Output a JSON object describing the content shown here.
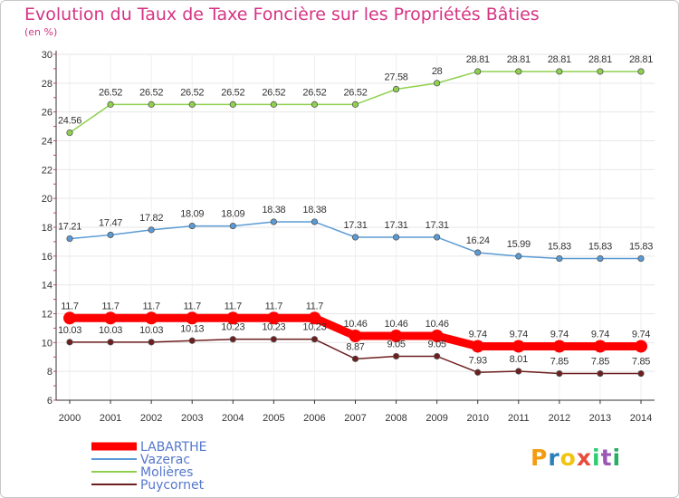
{
  "title": "Evolution du Taux de Taxe Foncière sur les Propriétés Bâties",
  "unit": "(en %)",
  "logo": {
    "letters": [
      "P",
      "r",
      "o",
      "x",
      "i",
      "t",
      "i"
    ],
    "colors": [
      "#f39c12",
      "#2980b9",
      "#f1c40f",
      "#e74c3c",
      "#2ecc71",
      "#9b59b6",
      "#27ae60"
    ]
  },
  "chart_data": {
    "type": "line",
    "x": [
      "2000",
      "2001",
      "2002",
      "2003",
      "2004",
      "2005",
      "2006",
      "2007",
      "2008",
      "2009",
      "2010",
      "2011",
      "2012",
      "2013",
      "2014"
    ],
    "ylim": [
      6,
      30
    ],
    "yticks": [
      6,
      8,
      10,
      12,
      14,
      16,
      18,
      20,
      22,
      24,
      26,
      28,
      30
    ],
    "grid": true,
    "legend_placement": "bottom-left",
    "series": [
      {
        "name": "LABARTHE",
        "color": "#ff0000",
        "bold": true,
        "values": [
          11.7,
          11.7,
          11.7,
          11.7,
          11.7,
          11.7,
          11.7,
          10.46,
          10.46,
          10.46,
          9.74,
          9.74,
          9.74,
          9.74,
          9.74
        ],
        "labels": [
          "11.7",
          "11.7",
          "11.7",
          "11.7",
          "11.7",
          "11.7",
          "11.7",
          "10.46",
          "10.46",
          "10.46",
          "9.74",
          "9.74",
          "9.74",
          "9.74",
          "9.74"
        ]
      },
      {
        "name": "Vazerac",
        "color": "#5b9bd5",
        "bold": false,
        "values": [
          17.21,
          17.47,
          17.82,
          18.09,
          18.09,
          18.38,
          18.38,
          17.31,
          17.31,
          17.31,
          16.24,
          15.99,
          15.83,
          15.83,
          15.83
        ],
        "labels": [
          "17.21",
          "17.47",
          "17.82",
          "18.09",
          "18.09",
          "18.38",
          "18.38",
          "17.31",
          "17.31",
          "17.31",
          "16.24",
          "15.99",
          "15.83",
          "15.83",
          "15.83"
        ]
      },
      {
        "name": "Molières",
        "color": "#8fd14f",
        "bold": false,
        "values": [
          24.56,
          26.52,
          26.52,
          26.52,
          26.52,
          26.52,
          26.52,
          26.52,
          27.58,
          28,
          28.81,
          28.81,
          28.81,
          28.81,
          28.81
        ],
        "labels": [
          "24.56",
          "26.52",
          "26.52",
          "26.52",
          "26.52",
          "26.52",
          "26.52",
          "26.52",
          "27.58",
          "28",
          "28.81",
          "28.81",
          "28.81",
          "28.81",
          "28.81"
        ]
      },
      {
        "name": "Puycornet",
        "color": "#6e1e1e",
        "bold": false,
        "values": [
          10.03,
          10.03,
          10.03,
          10.13,
          10.23,
          10.23,
          10.23,
          8.87,
          9.05,
          9.05,
          7.93,
          8.01,
          7.85,
          7.85,
          7.85
        ],
        "labels": [
          "10.03",
          "10.03",
          "10.03",
          "10.13",
          "10.23",
          "10.23",
          "10.23",
          "8.87",
          "9.05",
          "9.05",
          "7.93",
          "8.01",
          "7.85",
          "7.85",
          "7.85"
        ]
      }
    ]
  }
}
